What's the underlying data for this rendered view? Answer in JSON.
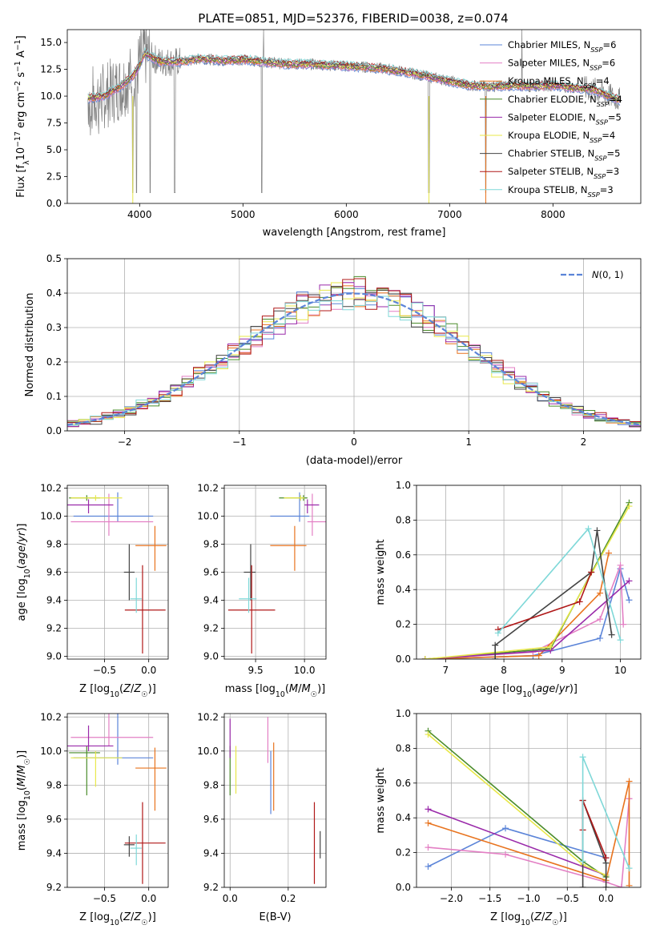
{
  "colors": {
    "Chabrier MILES": "#5b84d8",
    "Salpeter MILES": "#e37fc4",
    "Kroupa MILES": "#e8731e",
    "Chabrier ELODIE": "#4a8c2a",
    "Salpeter ELODIE": "#9a2aaa",
    "Kroupa ELODIE": "#e8e84a",
    "Chabrier STELIB": "#444444",
    "Salpeter STELIB": "#b01818",
    "Kroupa STELIB": "#7fd8d8",
    "gaussian": "#5b84d8",
    "data": "#808080"
  },
  "chart_data": [
    {
      "id": "spectrum",
      "type": "line",
      "title": "PLATE=0851, MJD=52376, FIBERID=0038, z=0.074",
      "xlabel": "wavelength [Angstrom, rest frame]",
      "ylabel": "Flux [f_λ10^-17 erg cm^-2 s^-1 A^-1]",
      "xlim": [
        3300,
        8850
      ],
      "ylim": [
        0,
        16.2
      ],
      "xticks": [
        4000,
        5000,
        6000,
        7000,
        8000
      ],
      "yticks": [
        0.0,
        2.5,
        5.0,
        7.5,
        10.0,
        12.5,
        15.0
      ],
      "legend_position": "upper right",
      "legend": [
        {
          "model": "Chabrier MILES",
          "nssp": "6"
        },
        {
          "model": "Salpeter MILES",
          "nssp": "6"
        },
        {
          "model": "Kroupa MILES",
          "nssp": "4"
        },
        {
          "model": "Chabrier ELODIE",
          "nssp": "4"
        },
        {
          "model": "Salpeter ELODIE",
          "nssp": "5"
        },
        {
          "model": "Kroupa ELODIE",
          "nssp": "4"
        },
        {
          "model": "Chabrier STELIB",
          "nssp": "5"
        },
        {
          "model": "Salpeter STELIB",
          "nssp": "3"
        },
        {
          "model": "Kroupa STELIB",
          "nssp": "3"
        }
      ],
      "continuum": {
        "x": [
          3500,
          3650,
          3800,
          3950,
          4050,
          4200,
          4400,
          4600,
          4800,
          5000,
          5200,
          5400,
          5600,
          5800,
          6000,
          6200,
          6400,
          6600,
          6800,
          7000,
          7200,
          7400,
          7600,
          7800,
          8000,
          8200,
          8400,
          8650
        ],
        "y": [
          9.8,
          10.0,
          10.8,
          12.0,
          14.0,
          13.2,
          13.2,
          13.5,
          13.3,
          13.4,
          13.2,
          13.0,
          13.0,
          12.9,
          12.8,
          12.7,
          12.5,
          12.2,
          11.8,
          11.4,
          11.0,
          10.9,
          11.0,
          10.9,
          11.0,
          10.8,
          10.6,
          9.6
        ]
      },
      "absorption_lines": [
        3934,
        3969,
        4102,
        4340,
        5183,
        6800,
        7350
      ],
      "gaps": [
        5200,
        7700
      ]
    },
    {
      "id": "residuals",
      "type": "bar",
      "xlabel": "(data-model)/error",
      "ylabel": "Normed distribution",
      "xlim": [
        -2.5,
        2.5
      ],
      "ylim": [
        0,
        0.5
      ],
      "xticks": [
        -2,
        -1,
        0,
        1,
        2
      ],
      "yticks": [
        0.0,
        0.1,
        0.2,
        0.3,
        0.4,
        0.5
      ],
      "legend": "N(0, 1)",
      "bin_width": 0.1,
      "bins_start": -2.5
    },
    {
      "id": "age-vs-Z",
      "type": "scatter",
      "xlabel": "Z [log10(Z/Z☉)]",
      "ylabel": "age  [log10(age/yr)]",
      "xlim": [
        -0.92,
        0.22
      ],
      "ylim": [
        8.98,
        10.22
      ],
      "xticks": [
        -0.5,
        0.0
      ],
      "yticks": [
        9.0,
        9.2,
        9.4,
        9.6,
        9.8,
        10.0,
        10.2
      ],
      "points": [
        {
          "model": "Chabrier MILES",
          "x": -0.35,
          "y": 10.0,
          "xerr": [
            0.5,
            0.4
          ],
          "yerr": [
            0.04,
            0.17
          ]
        },
        {
          "model": "Salpeter MILES",
          "x": -0.45,
          "y": 9.96,
          "xerr": [
            0.43,
            0.5
          ],
          "yerr": [
            0.1,
            0.2
          ]
        },
        {
          "model": "Kroupa MILES",
          "x": 0.07,
          "y": 9.79,
          "xerr": [
            0.22,
            0.13
          ],
          "yerr": [
            0.18,
            0.14
          ]
        },
        {
          "model": "Chabrier ELODIE",
          "x": -0.7,
          "y": 10.13,
          "xerr": [
            0.2,
            0.15
          ],
          "yerr": [
            0.02,
            0.02
          ]
        },
        {
          "model": "Salpeter ELODIE",
          "x": -0.68,
          "y": 10.08,
          "xerr": [
            0.25,
            0.28
          ],
          "yerr": [
            0.06,
            0.04
          ]
        },
        {
          "model": "Kroupa ELODIE",
          "x": -0.6,
          "y": 10.13,
          "xerr": [
            0.28,
            0.3
          ],
          "yerr": [
            0.02,
            0.02
          ]
        },
        {
          "model": "Chabrier STELIB",
          "x": -0.22,
          "y": 9.6,
          "xerr": [
            0.06,
            0.06
          ],
          "yerr": [
            0.2,
            0.2
          ]
        },
        {
          "model": "Salpeter STELIB",
          "x": -0.07,
          "y": 9.33,
          "xerr": [
            0.2,
            0.26
          ],
          "yerr": [
            0.31,
            0.32
          ]
        },
        {
          "model": "Kroupa STELIB",
          "x": -0.14,
          "y": 9.41,
          "xerr": [
            0.07,
            0.06
          ],
          "yerr": [
            0.1,
            0.15
          ]
        }
      ]
    },
    {
      "id": "age-vs-mass",
      "type": "scatter",
      "xlabel": "mass [log10(M/M☉)]",
      "ylabel": "",
      "xlim": [
        9.18,
        10.22
      ],
      "ylim": [
        8.98,
        10.22
      ],
      "xticks": [
        9.5,
        10.0
      ],
      "yticks": [
        9.0,
        9.2,
        9.4,
        9.6,
        9.8,
        10.0,
        10.2
      ],
      "points": [
        {
          "model": "Chabrier MILES",
          "x": 9.95,
          "y": 10.0,
          "xerr": [
            0.3,
            0.1
          ],
          "yerr": [
            0.04,
            0.17
          ]
        },
        {
          "model": "Salpeter MILES",
          "x": 10.08,
          "y": 9.96,
          "xerr": [
            0.05,
            0.15
          ],
          "yerr": [
            0.1,
            0.2
          ]
        },
        {
          "model": "Kroupa MILES",
          "x": 9.9,
          "y": 9.79,
          "xerr": [
            0.25,
            0.12
          ],
          "yerr": [
            0.18,
            0.14
          ]
        },
        {
          "model": "Chabrier ELODIE",
          "x": 9.99,
          "y": 10.13,
          "xerr": [
            0.25,
            0.04
          ],
          "yerr": [
            0.02,
            0.02
          ]
        },
        {
          "model": "Salpeter ELODIE",
          "x": 10.03,
          "y": 10.08,
          "xerr": [
            0.03,
            0.12
          ],
          "yerr": [
            0.06,
            0.04
          ]
        },
        {
          "model": "Kroupa ELODIE",
          "x": 9.96,
          "y": 10.13,
          "xerr": [
            0.17,
            0.04
          ],
          "yerr": [
            0.02,
            0.02
          ]
        },
        {
          "model": "Chabrier STELIB",
          "x": 9.45,
          "y": 9.6,
          "xerr": [
            0.07,
            0.05
          ],
          "yerr": [
            0.2,
            0.2
          ]
        },
        {
          "model": "Salpeter STELIB",
          "x": 9.46,
          "y": 9.33,
          "xerr": [
            0.24,
            0.24
          ],
          "yerr": [
            0.31,
            0.32
          ]
        },
        {
          "model": "Kroupa STELIB",
          "x": 9.43,
          "y": 9.41,
          "xerr": [
            0.1,
            0.08
          ],
          "yerr": [
            0.1,
            0.15
          ]
        }
      ]
    },
    {
      "id": "massweight-vs-age",
      "type": "line",
      "xlabel": "age  [log10(age/yr)]",
      "ylabel": "mass weight",
      "xlim": [
        6.5,
        10.35
      ],
      "ylim": [
        0,
        1.0
      ],
      "xticks": [
        7,
        8,
        9,
        10
      ],
      "yticks": [
        0.0,
        0.2,
        0.4,
        0.6,
        0.8,
        1.0
      ],
      "series": [
        {
          "model": "Chabrier MILES",
          "x": [
            6.65,
            8.5,
            9.65,
            10.0,
            10.15
          ],
          "y": [
            0.0,
            0.02,
            0.12,
            0.52,
            0.34
          ]
        },
        {
          "model": "Salpeter MILES",
          "x": [
            6.65,
            8.5,
            9.65,
            10.0,
            10.05
          ],
          "y": [
            0.0,
            0.04,
            0.23,
            0.54,
            0.2
          ]
        },
        {
          "model": "Kroupa MILES",
          "x": [
            6.65,
            8.6,
            9.65,
            9.8
          ],
          "y": [
            0.0,
            0.02,
            0.38,
            0.61
          ]
        },
        {
          "model": "Chabrier ELODIE",
          "x": [
            6.65,
            8.8,
            10.15
          ],
          "y": [
            0.0,
            0.06,
            0.9
          ]
        },
        {
          "model": "Salpeter ELODIE",
          "x": [
            6.65,
            8.8,
            10.15
          ],
          "y": [
            0.0,
            0.05,
            0.45
          ]
        },
        {
          "model": "Kroupa ELODIE",
          "x": [
            6.65,
            8.8,
            10.15
          ],
          "y": [
            0.0,
            0.07,
            0.88
          ]
        },
        {
          "model": "Chabrier STELIB",
          "x": [
            7.85,
            7.85,
            9.5,
            9.6,
            9.85
          ],
          "y": [
            0.0,
            0.08,
            0.5,
            0.74,
            0.14
          ]
        },
        {
          "model": "Salpeter STELIB",
          "x": [
            7.9,
            9.3,
            9.5
          ],
          "y": [
            0.17,
            0.33,
            0.5
          ]
        },
        {
          "model": "Kroupa STELIB",
          "x": [
            7.9,
            9.45,
            10.0
          ],
          "y": [
            0.15,
            0.75,
            0.11
          ]
        }
      ]
    },
    {
      "id": "mass-vs-Z",
      "type": "scatter",
      "xlabel": "Z [log10(Z/Z☉)]",
      "ylabel": "mass [log10(M/M☉)]",
      "xlim": [
        -0.92,
        0.22
      ],
      "ylim": [
        9.2,
        10.22
      ],
      "xticks": [
        -0.5,
        0.0
      ],
      "yticks": [
        9.2,
        9.4,
        9.6,
        9.8,
        10.0,
        10.2
      ],
      "points": [
        {
          "model": "Chabrier MILES",
          "x": -0.35,
          "y": 9.96,
          "xerr": [
            0.5,
            0.4
          ],
          "yerr": [
            0.04,
            0.33
          ]
        },
        {
          "model": "Salpeter MILES",
          "x": -0.45,
          "y": 10.08,
          "xerr": [
            0.43,
            0.5
          ],
          "yerr": [
            0.05,
            0.15
          ]
        },
        {
          "model": "Kroupa MILES",
          "x": 0.07,
          "y": 9.9,
          "xerr": [
            0.22,
            0.13
          ],
          "yerr": [
            0.25,
            0.12
          ]
        },
        {
          "model": "Chabrier ELODIE",
          "x": -0.7,
          "y": 9.99,
          "xerr": [
            0.2,
            0.15
          ],
          "yerr": [
            0.25,
            0.04
          ]
        },
        {
          "model": "Salpeter ELODIE",
          "x": -0.68,
          "y": 10.03,
          "xerr": [
            0.25,
            0.28
          ],
          "yerr": [
            0.03,
            0.12
          ]
        },
        {
          "model": "Kroupa ELODIE",
          "x": -0.6,
          "y": 9.96,
          "xerr": [
            0.28,
            0.3
          ],
          "yerr": [
            0.17,
            0.04
          ]
        },
        {
          "model": "Chabrier STELIB",
          "x": -0.22,
          "y": 9.45,
          "xerr": [
            0.06,
            0.06
          ],
          "yerr": [
            0.07,
            0.05
          ]
        },
        {
          "model": "Salpeter STELIB",
          "x": -0.07,
          "y": 9.46,
          "xerr": [
            0.2,
            0.26
          ],
          "yerr": [
            0.24,
            0.24
          ]
        },
        {
          "model": "Kroupa STELIB",
          "x": -0.14,
          "y": 9.43,
          "xerr": [
            0.07,
            0.06
          ],
          "yerr": [
            0.1,
            0.08
          ]
        }
      ]
    },
    {
      "id": "mass-vs-ebv",
      "type": "scatter",
      "xlabel": "E(B-V)",
      "ylabel": "",
      "xlim": [
        -0.02,
        0.33
      ],
      "ylim": [
        9.2,
        10.22
      ],
      "xticks": [
        0.0,
        0.2
      ],
      "yticks": [
        9.2,
        9.4,
        9.6,
        9.8,
        10.0,
        10.2
      ],
      "points": [
        {
          "model": "Chabrier MILES",
          "x": 0.14,
          "y": 9.96,
          "yerr": [
            0.33,
            0.04
          ]
        },
        {
          "model": "Salpeter MILES",
          "x": 0.13,
          "y": 10.08,
          "yerr": [
            0.15,
            0.12
          ]
        },
        {
          "model": "Kroupa MILES",
          "x": 0.15,
          "y": 9.9,
          "yerr": [
            0.25,
            0.15
          ]
        },
        {
          "model": "Chabrier ELODIE",
          "x": 0.0,
          "y": 9.99,
          "yerr": [
            0.25,
            0.04
          ]
        },
        {
          "model": "Salpeter ELODIE",
          "x": 0.0,
          "y": 10.03,
          "yerr": [
            0.07,
            0.16
          ]
        },
        {
          "model": "Kroupa ELODIE",
          "x": 0.02,
          "y": 9.96,
          "yerr": [
            0.21,
            0.07
          ]
        },
        {
          "model": "Chabrier STELIB",
          "x": 0.31,
          "y": 9.45,
          "yerr": [
            0.08,
            0.08
          ]
        },
        {
          "model": "Salpeter STELIB",
          "x": 0.29,
          "y": 9.46,
          "yerr": [
            0.24,
            0.24
          ]
        }
      ]
    },
    {
      "id": "massweight-vs-Z",
      "type": "line",
      "xlabel": "Z [log10(Z/Z☉)]",
      "ylabel": "mass weight",
      "xlim": [
        -2.45,
        0.45
      ],
      "ylim": [
        0,
        1.0
      ],
      "xticks": [
        -2.0,
        -1.5,
        -1.0,
        -0.5,
        0.0
      ],
      "yticks": [
        0.0,
        0.2,
        0.4,
        0.6,
        0.8,
        1.0
      ],
      "series": [
        {
          "model": "Chabrier MILES",
          "x": [
            -2.3,
            -1.3,
            0.0
          ],
          "y": [
            0.12,
            0.34,
            0.17
          ]
        },
        {
          "model": "Salpeter MILES",
          "x": [
            -2.3,
            -1.3,
            0.0,
            0.2,
            0.3,
            0.3
          ],
          "y": [
            0.23,
            0.19,
            0.03,
            0.0,
            0.51,
            0.51
          ]
        },
        {
          "model": "Kroupa MILES",
          "x": [
            -2.3,
            0.0,
            0.3,
            0.3
          ],
          "y": [
            0.37,
            0.04,
            0.61,
            0.01
          ]
        },
        {
          "model": "Chabrier ELODIE",
          "x": [
            -2.3,
            -0.3,
            0.0
          ],
          "y": [
            0.9,
            0.15,
            0.06
          ]
        },
        {
          "model": "Salpeter ELODIE",
          "x": [
            -2.3,
            0.0
          ],
          "y": [
            0.45,
            0.07
          ]
        },
        {
          "model": "Kroupa ELODIE",
          "x": [
            -2.3,
            -0.3,
            0.0
          ],
          "y": [
            0.88,
            0.13,
            0.07
          ]
        },
        {
          "model": "Chabrier STELIB",
          "x": [
            -0.3,
            -0.3,
            0.0,
            0.0
          ],
          "y": [
            0.0,
            0.5,
            0.14,
            0.0
          ]
        },
        {
          "model": "Salpeter STELIB",
          "x": [
            -0.3,
            -0.3,
            0.0
          ],
          "y": [
            0.33,
            0.5,
            0.17
          ]
        },
        {
          "model": "Kroupa STELIB",
          "x": [
            -0.3,
            -0.3,
            0.3
          ],
          "y": [
            0.15,
            0.75,
            0.11
          ]
        }
      ]
    }
  ]
}
